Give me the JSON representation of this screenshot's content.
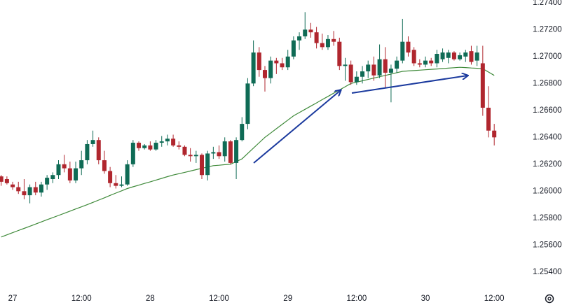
{
  "chart_data": {
    "type": "candlestick",
    "categories": [
      null,
      null,
      "27",
      null,
      null,
      null,
      null,
      null,
      null,
      null,
      null,
      null,
      null,
      null,
      "12:00",
      null,
      null,
      null,
      null,
      null,
      null,
      null,
      null,
      null,
      null,
      null,
      "28",
      null,
      null,
      null,
      null,
      null,
      null,
      null,
      null,
      null,
      null,
      null,
      "12:00",
      null,
      null,
      null,
      null,
      null,
      null,
      null,
      null,
      null,
      null,
      null,
      "29",
      null,
      null,
      null,
      null,
      null,
      null,
      null,
      null,
      null,
      null,
      null,
      "12:00",
      null,
      null,
      null,
      null,
      null,
      null,
      null,
      null,
      null,
      null,
      null,
      "30",
      null,
      null,
      null,
      null,
      null,
      null,
      null,
      null,
      null,
      null,
      null,
      "12:00"
    ],
    "up_color": "#0f6b55",
    "down_color": "#b0262e",
    "open": [
      1.2611,
      1.2609,
      1.2605,
      1.2603,
      1.26,
      1.2597,
      1.2603,
      1.2599,
      1.2605,
      1.2609,
      1.2612,
      1.262,
      1.2617,
      1.2608,
      1.2617,
      1.2623,
      1.2635,
      1.2638,
      1.2623,
      1.2615,
      1.2606,
      1.2604,
      1.2605,
      1.262,
      1.2636,
      1.2632,
      1.2634,
      1.2631,
      1.2636,
      1.2637,
      1.2639,
      1.2634,
      1.2633,
      1.2627,
      1.2626,
      1.2627,
      1.2612,
      1.2628,
      1.2629,
      1.2626,
      1.2637,
      1.2621,
      1.2638,
      1.265,
      1.268,
      1.2703,
      1.269,
      1.2684,
      1.2697,
      1.2695,
      1.2692,
      1.27,
      1.2712,
      1.2715,
      1.272,
      1.2718,
      1.271,
      1.2707,
      1.2713,
      1.2711,
      1.2693,
      1.2694,
      1.2681,
      1.2685,
      1.2689,
      1.2694,
      1.2686,
      1.2698,
      1.2688,
      1.2691,
      1.2697,
      1.2711,
      1.2705,
      1.2695,
      1.2694,
      1.2697,
      1.2695,
      1.2698,
      1.2699,
      1.2703,
      1.2698,
      1.27,
      1.2704,
      1.2697,
      1.2695,
      1.2662,
      1.2645
    ],
    "high": [
      1.2612,
      1.2611,
      1.2607,
      1.2607,
      1.2609,
      1.2605,
      1.2607,
      1.2607,
      1.2612,
      1.2614,
      1.2623,
      1.2627,
      1.2622,
      1.2622,
      1.263,
      1.2638,
      1.2645,
      1.264,
      1.263,
      1.2618,
      1.2612,
      1.2611,
      1.2623,
      1.2638,
      1.2637,
      1.2635,
      1.2637,
      1.2638,
      1.2641,
      1.2642,
      1.2642,
      1.2637,
      1.2634,
      1.2632,
      1.263,
      1.2628,
      1.263,
      1.2633,
      1.2634,
      1.264,
      1.2638,
      1.264,
      1.2655,
      1.2684,
      1.2712,
      1.2707,
      1.2693,
      1.27,
      1.2699,
      1.2699,
      1.2705,
      1.2715,
      1.2718,
      1.2733,
      1.2725,
      1.2722,
      1.2717,
      1.2716,
      1.2719,
      1.2714,
      1.2699,
      1.2697,
      1.2689,
      1.2693,
      1.2697,
      1.27,
      1.2709,
      1.2707,
      1.2694,
      1.27,
      1.2728,
      1.2715,
      1.2707,
      1.2698,
      1.27,
      1.2699,
      1.2705,
      1.2706,
      1.2705,
      1.2704,
      1.2703,
      1.2705,
      1.2708,
      1.2708,
      1.2708,
      1.2678,
      1.265
    ],
    "low": [
      1.2604,
      1.2605,
      1.2601,
      1.2598,
      1.2594,
      1.2591,
      1.2597,
      1.2596,
      1.2601,
      1.2606,
      1.2609,
      1.2614,
      1.2606,
      1.2606,
      1.2612,
      1.262,
      1.2633,
      1.262,
      1.2613,
      1.2603,
      1.2602,
      1.2603,
      1.2604,
      1.2618,
      1.263,
      1.2631,
      1.263,
      1.263,
      1.2633,
      1.2634,
      1.2633,
      1.2631,
      1.2626,
      1.2622,
      1.2621,
      1.2609,
      1.2608,
      1.2624,
      1.2624,
      1.2622,
      1.262,
      1.2609,
      1.2637,
      1.2646,
      1.2678,
      1.2685,
      1.2674,
      1.268,
      1.2687,
      1.269,
      1.269,
      1.2698,
      1.2705,
      1.2713,
      1.2714,
      1.2706,
      1.2705,
      1.2705,
      1.2708,
      1.269,
      1.2682,
      1.2679,
      1.2679,
      1.268,
      1.2684,
      1.2682,
      1.2684,
      1.2677,
      1.2666,
      1.2688,
      1.2695,
      1.27,
      1.2693,
      1.2692,
      1.2692,
      1.2693,
      1.2692,
      1.2696,
      1.2695,
      1.2697,
      1.2697,
      1.2696,
      1.2694,
      1.2693,
      1.2656,
      1.264,
      1.2634
    ],
    "close": [
      1.2607,
      1.2606,
      1.2603,
      1.26,
      1.2597,
      1.2603,
      1.2599,
      1.2605,
      1.261,
      1.2612,
      1.262,
      1.2617,
      1.2608,
      1.2617,
      1.2623,
      1.2635,
      1.2638,
      1.2623,
      1.2615,
      1.2606,
      1.2604,
      1.2605,
      1.262,
      1.2636,
      1.2632,
      1.2634,
      1.2631,
      1.2636,
      1.2637,
      1.2639,
      1.2634,
      1.2633,
      1.2627,
      1.2626,
      1.2627,
      1.2612,
      1.2628,
      1.2629,
      1.2626,
      1.2637,
      1.2621,
      1.2638,
      1.265,
      1.268,
      1.2703,
      1.269,
      1.2684,
      1.2697,
      1.2695,
      1.2692,
      1.27,
      1.2712,
      1.2715,
      1.272,
      1.2718,
      1.271,
      1.2707,
      1.2713,
      1.2711,
      1.2693,
      1.2694,
      1.2681,
      1.2685,
      1.2689,
      1.2694,
      1.2686,
      1.2698,
      1.2688,
      1.2691,
      1.2697,
      1.2711,
      1.2703,
      1.2695,
      1.2694,
      1.2697,
      1.2695,
      1.2702,
      1.2703,
      1.2703,
      1.2698,
      1.2701,
      1.2703,
      1.2696,
      1.2703,
      1.2662,
      1.2645,
      1.264
    ],
    "moving_average": {
      "color": "#3f8a3a",
      "values": [
        1.2566,
        1.25676,
        1.25692,
        1.25708,
        1.25724,
        1.2574,
        1.25756,
        1.25772,
        1.25788,
        1.25804,
        1.2582,
        1.25836,
        1.25852,
        1.25868,
        1.25884,
        1.259,
        1.25917,
        1.25934,
        1.25951,
        1.25969,
        1.25986,
        1.26003,
        1.2602,
        1.26033,
        1.26045,
        1.26058,
        1.2607,
        1.26083,
        1.26095,
        1.26108,
        1.2612,
        1.2613,
        1.2614,
        1.2615,
        1.2616,
        1.2617,
        1.2618,
        1.2619,
        1.26193,
        1.26197,
        1.262,
        1.2622,
        1.2624,
        1.2628,
        1.2632,
        1.2636,
        1.264,
        1.26432,
        1.26464,
        1.26496,
        1.26528,
        1.2656,
        1.26584,
        1.26608,
        1.26632,
        1.26656,
        1.2668,
        1.26704,
        1.26728,
        1.26752,
        1.26776,
        1.268,
        1.2681,
        1.2682,
        1.2683,
        1.2684,
        1.2685,
        1.2686,
        1.2687,
        1.2688,
        1.2689,
        1.26893,
        1.26896,
        1.26899,
        1.26902,
        1.26905,
        1.26908,
        1.26911,
        1.26914,
        1.26917,
        1.2692,
        1.26918,
        1.26915,
        1.26913,
        1.2691,
        1.26885,
        1.2686
      ]
    },
    "ylim": [
      1.2529,
      1.2742
    ],
    "yticks": [
      {
        "value": 1.254,
        "label": "1.25400"
      },
      {
        "value": 1.256,
        "label": "1.25600"
      },
      {
        "value": 1.258,
        "label": "1.25800"
      },
      {
        "value": 1.26,
        "label": "1.26000"
      },
      {
        "value": 1.262,
        "label": "1.26200"
      },
      {
        "value": 1.264,
        "label": "1.26400"
      },
      {
        "value": 1.266,
        "label": "1.26600"
      },
      {
        "value": 1.268,
        "label": "1.26800"
      },
      {
        "value": 1.27,
        "label": "1.27000"
      },
      {
        "value": 1.272,
        "label": "1.27200"
      },
      {
        "value": 1.274,
        "label": "1.27400"
      }
    ],
    "grid": false
  }
}
